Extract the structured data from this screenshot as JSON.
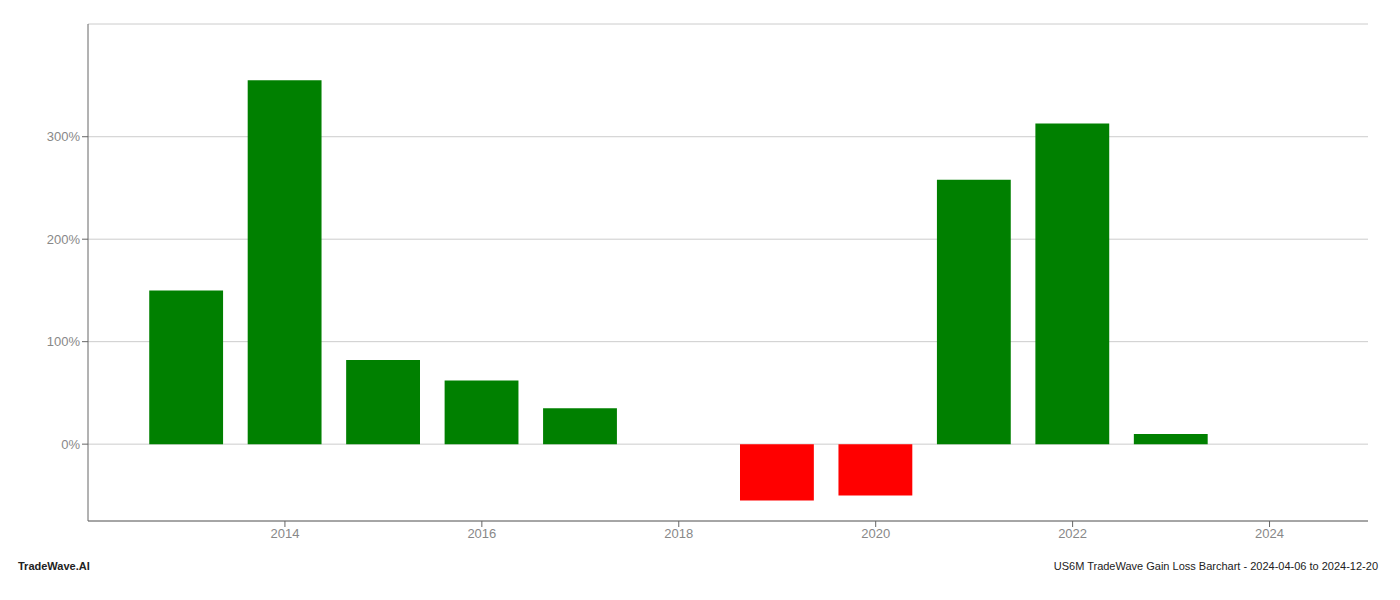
{
  "chart_data": {
    "type": "bar",
    "x": [
      2013,
      2014,
      2015,
      2016,
      2017,
      2018,
      2019,
      2020,
      2021,
      2022,
      2023
    ],
    "values": [
      1.5,
      3.55,
      0.82,
      0.62,
      0.35,
      0.0,
      -0.55,
      -0.5,
      2.58,
      3.13,
      0.1
    ],
    "colors": [
      "#008000",
      "#008000",
      "#008000",
      "#008000",
      "#008000",
      "#008000",
      "#ff0000",
      "#ff0000",
      "#008000",
      "#008000",
      "#008000"
    ],
    "xlim": [
      2012.0,
      2025.0
    ],
    "xticks": [
      2014,
      2016,
      2018,
      2020,
      2022,
      2024
    ],
    "ylim": [
      -0.75,
      4.1
    ],
    "yticks": [
      {
        "value": 0.0,
        "label": "0%"
      },
      {
        "value": 1.0,
        "label": "100%"
      },
      {
        "value": 2.0,
        "label": "200%"
      },
      {
        "value": 3.0,
        "label": "300%"
      }
    ],
    "grid": true,
    "annotations": [
      "TradeWave.AI",
      "US6M TradeWave Gain Loss Barchart - 2024-04-06 to 2024-12-20"
    ]
  }
}
